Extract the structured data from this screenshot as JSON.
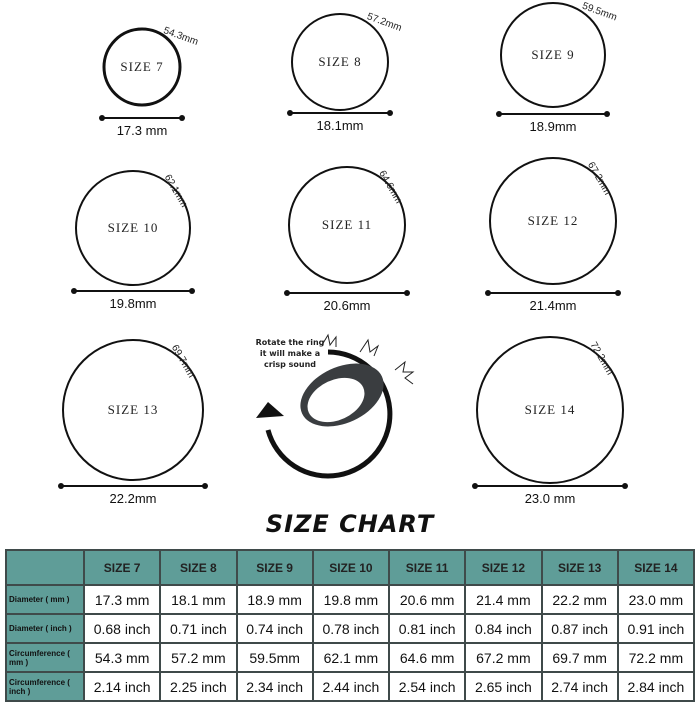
{
  "rings": [
    {
      "size": "SIZE 7",
      "circumference": "54.3mm",
      "diameter": "17.3 mm"
    },
    {
      "size": "SIZE 8",
      "circumference": "57.2mm",
      "diameter": "18.1mm"
    },
    {
      "size": "SIZE 9",
      "circumference": "59.5mm",
      "diameter": "18.9mm"
    },
    {
      "size": "SIZE 10",
      "circumference": "62.1mm",
      "diameter": "19.8mm"
    },
    {
      "size": "SIZE 11",
      "circumference": "64.6mm",
      "diameter": "20.6mm"
    },
    {
      "size": "SIZE 12",
      "circumference": "67.2mm",
      "diameter": "21.4mm"
    },
    {
      "size": "SIZE 13",
      "circumference": "69.7mm",
      "diameter": "22.2mm"
    },
    {
      "size": "SIZE 14",
      "circumference": "72.2mm",
      "diameter": "23.0 mm"
    }
  ],
  "note": {
    "line1": "Rotate the ring",
    "line2": "it will make a",
    "line3": "crisp sound"
  },
  "title": "SIZE CHART",
  "table": {
    "headers": [
      "",
      "SIZE 7",
      "SIZE 8",
      "SIZE 9",
      "SIZE 10",
      "SIZE 11",
      "SIZE 12",
      "SIZE 13",
      "SIZE 14"
    ],
    "rows": [
      {
        "label": "Diameter ( mm )",
        "cells": [
          "17.3 mm",
          "18.1 mm",
          "18.9 mm",
          "19.8 mm",
          "20.6 mm",
          "21.4 mm",
          "22.2 mm",
          "23.0 mm"
        ]
      },
      {
        "label": "Diameter ( inch )",
        "cells": [
          "0.68 inch",
          "0.71 inch",
          "0.74 inch",
          "0.78 inch",
          "0.81 inch",
          "0.84 inch",
          "0.87 inch",
          "0.91 inch"
        ]
      },
      {
        "label": "Circumference ( mm )",
        "cells": [
          "54.3 mm",
          "57.2 mm",
          "59.5mm",
          "62.1 mm",
          "64.6 mm",
          "67.2 mm",
          "69.7 mm",
          "72.2 mm"
        ]
      },
      {
        "label": "Circumference ( inch )",
        "cells": [
          "2.14 inch",
          "2.25 inch",
          "2.34 inch",
          "2.44 inch",
          "2.54 inch",
          "2.65 inch",
          "2.74 inch",
          "2.84 inch"
        ]
      }
    ]
  },
  "colors": {
    "header_bg": "#5f9d98",
    "border": "#3f4a4a"
  }
}
